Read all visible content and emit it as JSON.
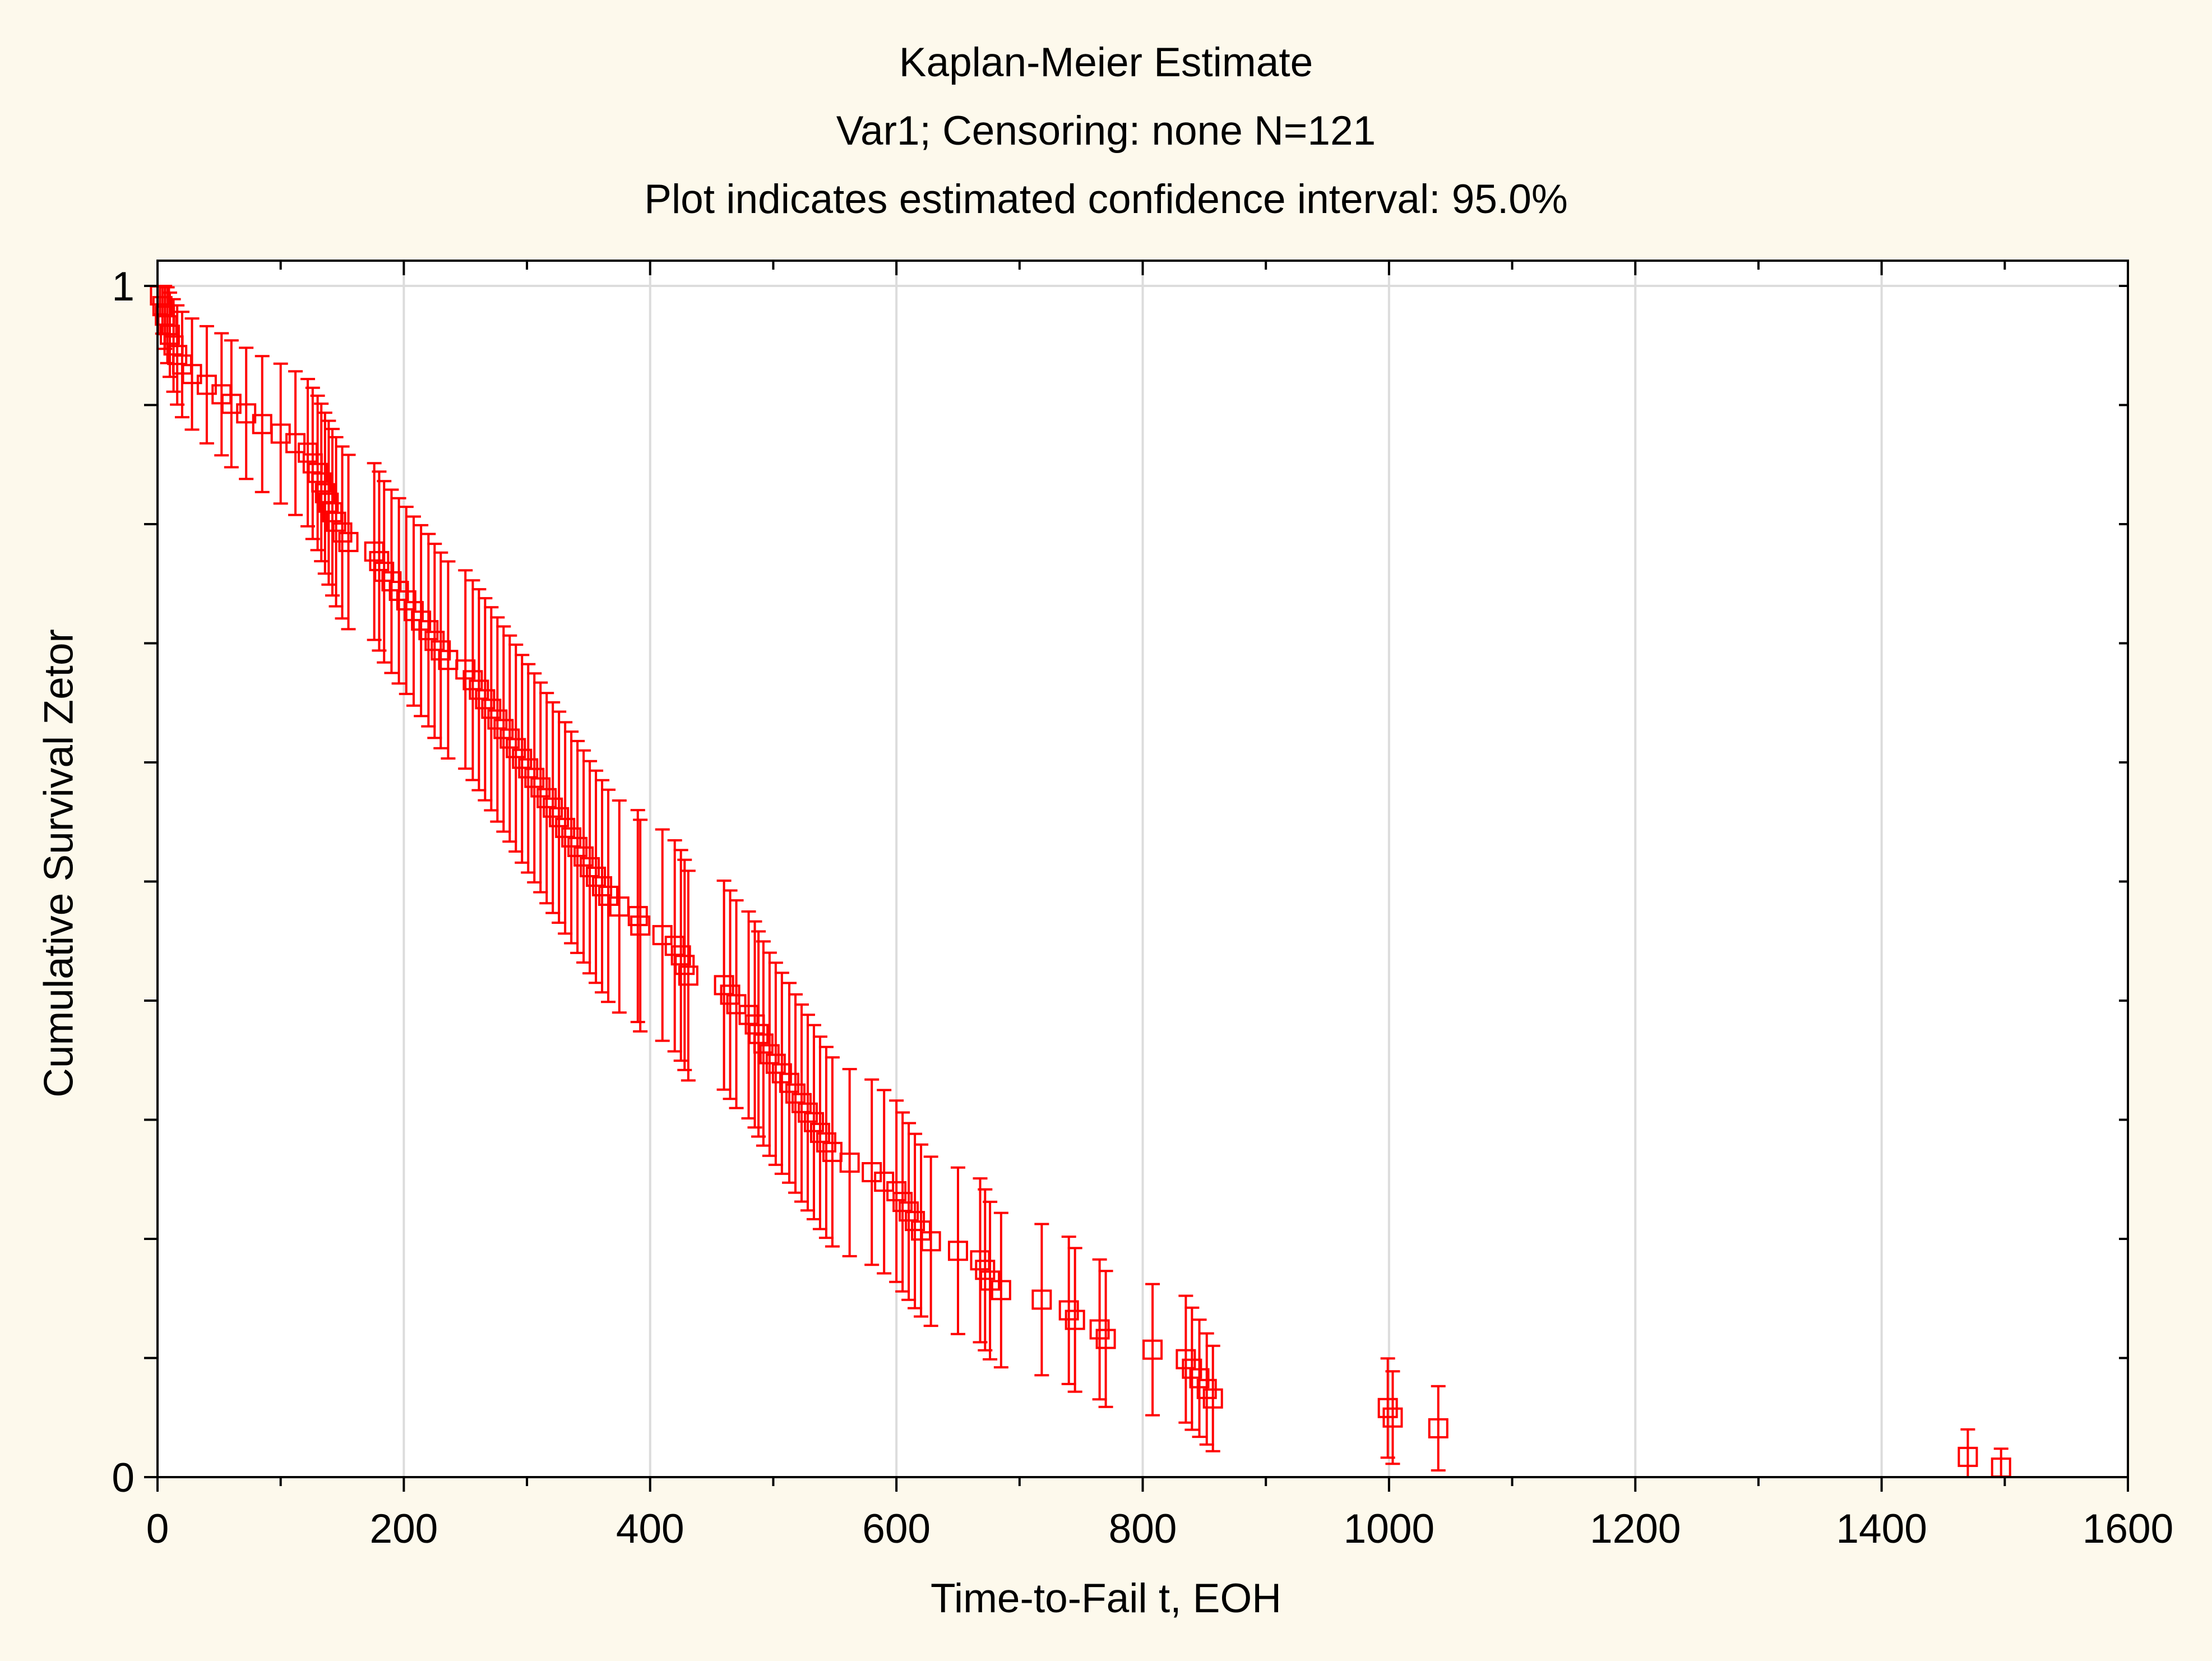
{
  "chart_data": {
    "type": "scatter",
    "title": "Kaplan-Meier Estimate",
    "subtitle": "Var1; Censoring: none N=121",
    "subtitle2": "Plot indicates estimated confidence interval: 95.0%",
    "xlabel": "Time-to-Fail t, EOH",
    "ylabel": "Cumulative Survival Zetor",
    "xlim": [
      0,
      1600
    ],
    "ylim": [
      0,
      1
    ],
    "x_ticks": [
      0,
      200,
      400,
      600,
      800,
      1000,
      1200,
      1400,
      1600
    ],
    "x_tick_labels": [
      "0",
      "200",
      "400",
      "600",
      "800",
      "1000",
      "1200",
      "1400",
      "1600"
    ],
    "y_tick_labels": [
      "0",
      "1"
    ],
    "grid": "vertical",
    "colors": {
      "marker": "#ff0000",
      "background": "#fdf9ec",
      "grid": "#dcdcdc",
      "axis": "#000000"
    },
    "series": [
      {
        "name": "Kaplan-Meier estimate",
        "x": [
          2,
          4,
          6,
          8,
          10,
          13,
          16,
          20,
          28,
          40,
          52,
          60,
          72,
          85,
          100,
          112,
          122,
          126,
          130,
          133,
          136,
          139,
          142,
          145,
          150,
          155,
          176,
          180,
          184,
          190,
          196,
          202,
          208,
          214,
          220,
          225,
          230,
          236,
          250,
          256,
          261,
          266,
          271,
          276,
          281,
          286,
          291,
          296,
          301,
          306,
          311,
          316,
          321,
          326,
          331,
          336,
          341,
          346,
          351,
          356,
          361,
          366,
          375,
          390,
          392,
          410,
          420,
          425,
          428,
          431,
          460,
          465,
          470,
          480,
          485,
          488,
          492,
          497,
          502,
          507,
          513,
          518,
          523,
          528,
          533,
          538,
          543,
          548,
          562,
          580,
          590,
          600,
          605,
          610,
          615,
          620,
          628,
          650,
          668,
          672,
          676,
          685,
          718,
          740,
          745,
          765,
          770,
          808,
          835,
          840,
          846,
          852,
          857,
          999,
          1003,
          1040,
          1470,
          1497
        ],
        "survival": [
          0.992,
          0.983,
          0.975,
          0.967,
          0.959,
          0.95,
          0.942,
          0.934,
          0.926,
          0.917,
          0.909,
          0.901,
          0.893,
          0.884,
          0.876,
          0.868,
          0.86,
          0.851,
          0.843,
          0.835,
          0.826,
          0.818,
          0.81,
          0.802,
          0.793,
          0.785,
          0.777,
          0.769,
          0.76,
          0.752,
          0.744,
          0.736,
          0.727,
          0.719,
          0.711,
          0.702,
          0.694,
          0.686,
          0.678,
          0.669,
          0.661,
          0.653,
          0.645,
          0.636,
          0.628,
          0.62,
          0.612,
          0.603,
          0.595,
          0.587,
          0.579,
          0.57,
          0.562,
          0.554,
          0.545,
          0.537,
          0.529,
          0.521,
          0.512,
          0.504,
          0.496,
          0.488,
          0.479,
          0.471,
          0.463,
          0.455,
          0.446,
          0.438,
          0.43,
          0.421,
          0.413,
          0.405,
          0.397,
          0.388,
          0.38,
          0.372,
          0.364,
          0.355,
          0.347,
          0.339,
          0.331,
          0.322,
          0.314,
          0.306,
          0.298,
          0.289,
          0.281,
          0.273,
          0.264,
          0.256,
          0.248,
          0.24,
          0.231,
          0.223,
          0.215,
          0.207,
          0.198,
          0.19,
          0.182,
          0.174,
          0.165,
          0.157,
          0.149,
          0.14,
          0.132,
          0.124,
          0.116,
          0.107,
          0.099,
          0.091,
          0.083,
          0.074,
          0.066,
          0.058,
          0.05,
          0.041,
          0.017,
          0.008
        ]
      }
    ],
    "confidence_interval": 0.95
  }
}
